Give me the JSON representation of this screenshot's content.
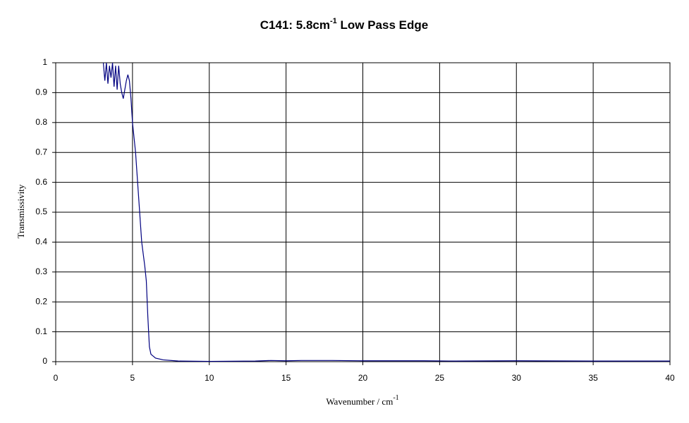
{
  "chart_data": {
    "type": "line",
    "title": {
      "text": "C141: 5.8cm",
      "superscript": "-1",
      "suffix": " Low Pass Edge"
    },
    "x_label": {
      "text": "Wavenumber / cm",
      "superscript": "-1"
    },
    "y_label": "Transmissivity",
    "x": [
      3.1,
      3.2,
      3.3,
      3.4,
      3.5,
      3.6,
      3.7,
      3.8,
      3.9,
      4.0,
      4.1,
      4.2,
      4.3,
      4.4,
      4.5,
      4.6,
      4.7,
      4.8,
      4.9,
      5.0,
      5.2,
      5.4,
      5.6,
      5.8,
      5.9,
      6.0,
      6.1,
      6.2,
      6.5,
      7,
      8,
      10,
      13,
      14,
      15,
      16,
      18,
      20,
      22,
      24,
      26,
      30,
      35,
      40
    ],
    "values": [
      1.0,
      0.94,
      1.0,
      0.93,
      0.99,
      0.95,
      1.0,
      0.92,
      0.99,
      0.91,
      0.99,
      0.93,
      0.9,
      0.88,
      0.91,
      0.94,
      0.96,
      0.94,
      0.88,
      0.8,
      0.7,
      0.55,
      0.4,
      0.32,
      0.27,
      0.15,
      0.05,
      0.025,
      0.012,
      0.006,
      0.002,
      0.001,
      0.002,
      0.004,
      0.003,
      0.004,
      0.004,
      0.003,
      0.003,
      0.003,
      0.002,
      0.003,
      0.002,
      0.002
    ],
    "color": "#000080",
    "xlim": [
      0,
      40
    ],
    "xticks": [
      0,
      5,
      10,
      15,
      20,
      25,
      30,
      35,
      40
    ],
    "ylim": [
      0,
      1
    ],
    "yticks": [
      0,
      0.1,
      0.2,
      0.3,
      0.4,
      0.5,
      0.6,
      0.7,
      0.8,
      0.9,
      1
    ],
    "grid": true
  }
}
